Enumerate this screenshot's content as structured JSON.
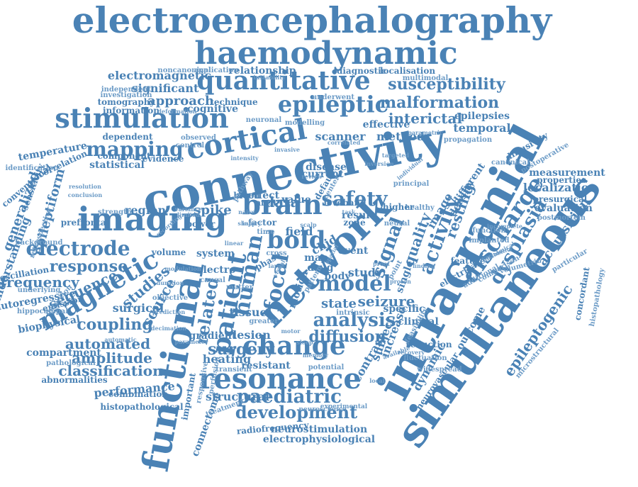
{
  "colors": {
    "background": "#ffffff",
    "word": "#4a82b5",
    "word_light": "#6d9cc7"
  },
  "words": [
    {
      "text": "electroencephalography"
    },
    {
      "text": "haemodynamic"
    },
    {
      "text": "connectivity"
    },
    {
      "text": "intracranial"
    },
    {
      "text": "simultaneous"
    },
    {
      "text": "functional"
    },
    {
      "text": "network"
    },
    {
      "text": "imaging"
    },
    {
      "text": "stimulation"
    },
    {
      "text": "quantitative"
    },
    {
      "text": "cortical"
    },
    {
      "text": "epileptic"
    },
    {
      "text": "mapping"
    },
    {
      "text": "malformation"
    },
    {
      "text": "susceptibility"
    },
    {
      "text": "interictal"
    },
    {
      "text": "epilepsies"
    },
    {
      "text": "temporal"
    },
    {
      "text": "method"
    },
    {
      "text": "effective"
    },
    {
      "text": "scanner"
    },
    {
      "text": "brain"
    },
    {
      "text": "bold"
    },
    {
      "text": "safety"
    },
    {
      "text": "data"
    },
    {
      "text": "patient"
    },
    {
      "text": "magnetic"
    },
    {
      "text": "electrode"
    },
    {
      "text": "response"
    },
    {
      "text": "frequency"
    },
    {
      "text": "sequence"
    },
    {
      "text": "studies"
    },
    {
      "text": "coupling"
    },
    {
      "text": "automated"
    },
    {
      "text": "amplitude"
    },
    {
      "text": "classification"
    },
    {
      "text": "performance"
    },
    {
      "text": "resonance"
    },
    {
      "text": "change"
    },
    {
      "text": "paediatric"
    },
    {
      "text": "development"
    },
    {
      "text": "neurostimulation"
    },
    {
      "text": "electrophysiological"
    },
    {
      "text": "model"
    },
    {
      "text": "analysis"
    },
    {
      "text": "diffusion"
    },
    {
      "text": "seizure"
    },
    {
      "text": "state"
    },
    {
      "text": "study"
    },
    {
      "text": "clinical"
    },
    {
      "text": "discharge"
    },
    {
      "text": "activity"
    },
    {
      "text": "signal"
    },
    {
      "text": "dysplasia"
    },
    {
      "text": "epileptogenic"
    },
    {
      "text": "acquisition"
    },
    {
      "text": "localization"
    },
    {
      "text": "measurement"
    },
    {
      "text": "evaluation"
    },
    {
      "text": "properties"
    },
    {
      "text": "presurgical"
    },
    {
      "text": "postmortem"
    },
    {
      "text": "concordant"
    },
    {
      "text": "histopathology"
    },
    {
      "text": "function"
    },
    {
      "text": "canonical"
    },
    {
      "text": "diffusivity"
    },
    {
      "text": "spike"
    },
    {
      "text": "region"
    },
    {
      "text": "human"
    },
    {
      "text": "focal"
    },
    {
      "text": "related"
    },
    {
      "text": "tissue"
    },
    {
      "text": "surgery"
    },
    {
      "text": "lesion"
    },
    {
      "text": "heating"
    },
    {
      "text": "structural"
    },
    {
      "text": "epileptiform"
    },
    {
      "text": "generalized"
    },
    {
      "text": "understanding"
    },
    {
      "text": "sensitivity"
    },
    {
      "text": "temperature"
    },
    {
      "text": "correlation"
    },
    {
      "text": "statistical"
    },
    {
      "text": "dependent"
    },
    {
      "text": "component"
    },
    {
      "text": "evidence"
    },
    {
      "text": "information"
    },
    {
      "text": "tomography"
    },
    {
      "text": "significant"
    },
    {
      "text": "electromagnetic"
    },
    {
      "text": "approach"
    },
    {
      "text": "cognitive"
    },
    {
      "text": "technique"
    },
    {
      "text": "relationship"
    },
    {
      "text": "diagnostic"
    },
    {
      "text": "localisation"
    },
    {
      "text": "multimodal"
    },
    {
      "text": "underwent"
    },
    {
      "text": "application"
    },
    {
      "text": "noncanonical"
    },
    {
      "text": "investigation"
    },
    {
      "text": "independent"
    },
    {
      "text": "deformation"
    },
    {
      "text": "neuronal"
    },
    {
      "text": "modelling"
    },
    {
      "text": "observed"
    },
    {
      "text": "control"
    },
    {
      "text": "strength"
    },
    {
      "text": "prefrontal"
    },
    {
      "text": "biophysical"
    },
    {
      "text": "autoregressive"
    },
    {
      "text": "hippocampal"
    },
    {
      "text": "emission"
    },
    {
      "text": "surgical"
    },
    {
      "text": "source"
    },
    {
      "text": "volume"
    },
    {
      "text": "system"
    },
    {
      "text": "gradient"
    },
    {
      "text": "resistant"
    },
    {
      "text": "transient"
    },
    {
      "text": "compartment"
    },
    {
      "text": "pathological"
    },
    {
      "text": "abnormalities"
    },
    {
      "text": "combination"
    },
    {
      "text": "histopathological"
    },
    {
      "text": "radiofrequency"
    },
    {
      "text": "connectome"
    },
    {
      "text": "treatment"
    },
    {
      "text": "neuroscience"
    },
    {
      "text": "experimental"
    },
    {
      "text": "neurovascular"
    },
    {
      "text": "microstructural"
    },
    {
      "text": "outcome"
    },
    {
      "text": "dynamic"
    },
    {
      "text": "contrast"
    },
    {
      "text": "subject"
    },
    {
      "text": "specific"
    },
    {
      "text": "intrinsic"
    },
    {
      "text": "reduction"
    },
    {
      "text": "fluctuation"
    },
    {
      "text": "potential"
    },
    {
      "text": "widespread"
    },
    {
      "text": "body"
    },
    {
      "text": "event"
    },
    {
      "text": "result"
    },
    {
      "text": "zone"
    },
    {
      "text": "field"
    },
    {
      "text": "level"
    },
    {
      "text": "band"
    },
    {
      "text": "value"
    },
    {
      "text": "area"
    },
    {
      "text": "effect"
    },
    {
      "text": "disease"
    },
    {
      "text": "current"
    },
    {
      "text": "blood"
    },
    {
      "text": "power"
    },
    {
      "text": "electro"
    },
    {
      "text": "causal"
    },
    {
      "text": "factor"
    },
    {
      "text": "greater"
    },
    {
      "text": "map"
    },
    {
      "text": "drug"
    },
    {
      "text": "chid"
    },
    {
      "text": "quality"
    },
    {
      "text": "resting"
    },
    {
      "text": "image"
    },
    {
      "text": "density"
    },
    {
      "text": "principal"
    },
    {
      "text": "healthy"
    },
    {
      "text": "higher"
    },
    {
      "text": "different"
    },
    {
      "text": "implanted"
    },
    {
      "text": "feature"
    },
    {
      "text": "variability"
    },
    {
      "text": "electrical"
    },
    {
      "text": "additional"
    },
    {
      "text": "comparison"
    },
    {
      "text": "anatomical"
    },
    {
      "text": "volumetric"
    },
    {
      "text": "postoperative"
    },
    {
      "text": "particular"
    },
    {
      "text": "incomplete"
    },
    {
      "text": "propagation"
    },
    {
      "text": "identification"
    },
    {
      "text": "detection"
    },
    {
      "text": "conventional"
    },
    {
      "text": "oscillation"
    },
    {
      "text": "underlying"
    },
    {
      "text": "background"
    },
    {
      "text": "retrospective"
    },
    {
      "text": "resolution"
    },
    {
      "text": "conclusion"
    },
    {
      "text": "duration"
    },
    {
      "text": "objective"
    },
    {
      "text": "prediction"
    },
    {
      "text": "decimation"
    },
    {
      "text": "perfusion"
    },
    {
      "text": "parameter"
    },
    {
      "text": "important"
    },
    {
      "text": "responsive"
    },
    {
      "text": "modulation"
    },
    {
      "text": "recording"
    },
    {
      "text": "variance"
    },
    {
      "text": "limited"
    },
    {
      "text": "naive"
    },
    {
      "text": "sharp"
    },
    {
      "text": "time"
    },
    {
      "text": "cross"
    },
    {
      "text": "scalp"
    },
    {
      "text": "center"
    },
    {
      "text": "pathway"
    },
    {
      "text": "review"
    },
    {
      "text": "instability"
    },
    {
      "text": "invasive"
    },
    {
      "text": "intensity"
    },
    {
      "text": "correlated"
    },
    {
      "text": "default"
    },
    {
      "text": "parametric"
    },
    {
      "text": "inversion"
    },
    {
      "text": "individual"
    },
    {
      "text": "targeted"
    },
    {
      "text": "injury"
    },
    {
      "text": "motion"
    },
    {
      "text": "single"
    },
    {
      "text": "point"
    },
    {
      "text": "proton"
    },
    {
      "text": "finding"
    },
    {
      "text": "increase"
    },
    {
      "text": "available"
    },
    {
      "text": "recovery"
    },
    {
      "text": "feasibility"
    },
    {
      "text": "proof"
    },
    {
      "text": "phase"
    },
    {
      "text": "pattern"
    },
    {
      "text": "matter"
    },
    {
      "text": "visual"
    },
    {
      "text": "task"
    },
    {
      "text": "linear"
    },
    {
      "text": "spatial"
    },
    {
      "text": "large"
    },
    {
      "text": "neural"
    },
    {
      "text": "automatic"
    },
    {
      "text": "motor"
    },
    {
      "text": "sleep"
    },
    {
      "text": "memory"
    },
    {
      "text": "local"
    }
  ]
}
